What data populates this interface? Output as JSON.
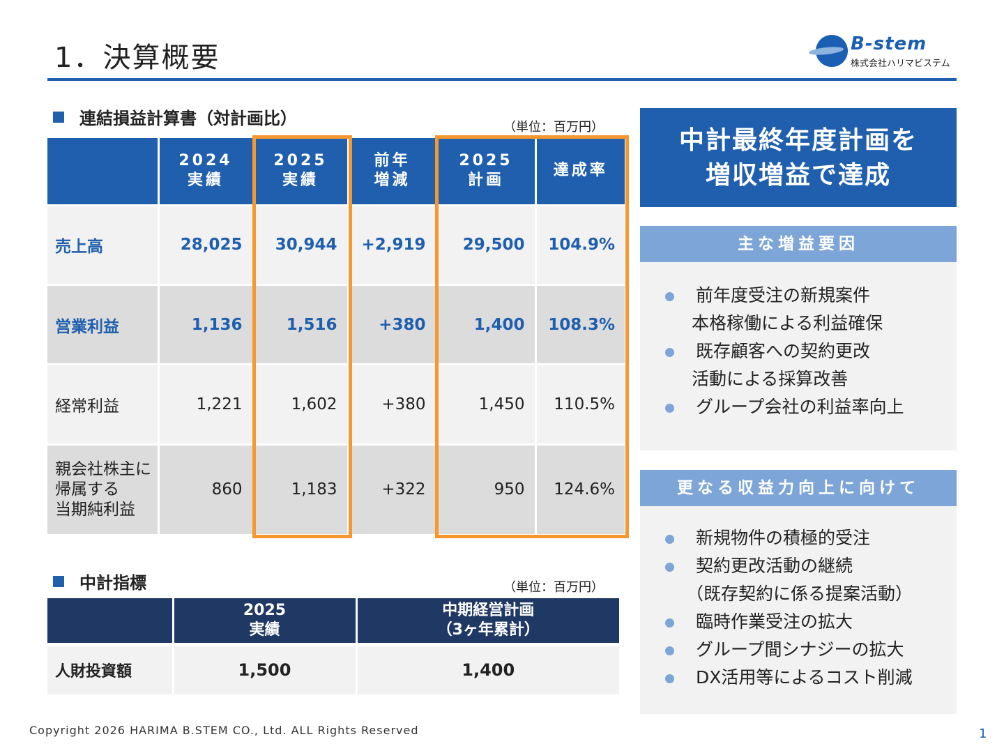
{
  "header": {
    "title": "1．決算概要",
    "logo_word": "B-stem",
    "logo_sub": "株式会社ハリマビステム"
  },
  "pl_section": {
    "heading": "連結損益計算書（対計画比）",
    "unit": "（単位：百万円）",
    "columns": [
      {
        "line1": "",
        "line2": ""
      },
      {
        "line1": "2024",
        "line2": "実績"
      },
      {
        "line1": "2025",
        "line2": "実績"
      },
      {
        "line1": "前年",
        "line2": "増減"
      },
      {
        "line1": "2025",
        "line2": "計画"
      },
      {
        "line1": "達成率",
        "line2": ""
      }
    ],
    "rows": [
      {
        "label": [
          "売上高"
        ],
        "values": [
          "28,025",
          "30,944",
          "+2,919",
          "29,500",
          "104.9%"
        ]
      },
      {
        "label": [
          "営業利益"
        ],
        "values": [
          "1,136",
          "1,516",
          "+380",
          "1,400",
          "108.3%"
        ]
      },
      {
        "label": [
          "経常利益"
        ],
        "values": [
          "1,221",
          "1,602",
          "+380",
          "1,450",
          "110.5%"
        ]
      },
      {
        "label": [
          "親会社株主に",
          "帰属する",
          "当期純利益"
        ],
        "values": [
          "860",
          "1,183",
          "+322",
          "950",
          "124.6%"
        ]
      }
    ]
  },
  "kpi_section": {
    "heading": "中計指標",
    "unit": "（単位：百万円）",
    "columns": [
      {
        "line1": "",
        "line2": ""
      },
      {
        "line1": "2025",
        "line2": "実績"
      },
      {
        "line1": "中期経営計画",
        "line2": "（3ヶ年累計）"
      }
    ],
    "row": {
      "label": "人財投資額",
      "values": [
        "1,500",
        "1,400"
      ]
    }
  },
  "right_panel": {
    "headline_line1": "中計最終年度計画を",
    "headline_line2": "増収増益で達成",
    "box1": {
      "title": "主な増益要因",
      "items": [
        {
          "line1": "前年度受注の新規案件",
          "line2": "本格稼働による利益確保"
        },
        {
          "line1": "既存顧客への契約更改",
          "line2": "活動による採算改善"
        },
        {
          "line1": "グループ会社の利益率向上",
          "line2": ""
        }
      ]
    },
    "box2": {
      "title": "更なる収益力向上に向けて",
      "items": [
        {
          "line1": "新規物件の積極的受注",
          "line2": ""
        },
        {
          "line1": "契約更改活動の継続",
          "line2": "（既存契約に係る提案活動）"
        },
        {
          "line1": "臨時作業受注の拡大",
          "line2": ""
        },
        {
          "line1": "グループ間シナジーの拡大",
          "line2": ""
        },
        {
          "line1": "DX活用等によるコスト削減",
          "line2": ""
        }
      ]
    }
  },
  "footer": {
    "copyright": "Copyright 2026 HARIMA B.STEM CO., Ltd. ALL Rights Reserved",
    "page_number": "1"
  },
  "colors": {
    "primary_blue": "#1f5fae",
    "navy": "#203864",
    "light_blue": "#7da5d8",
    "highlight_orange": "#f7982e"
  }
}
